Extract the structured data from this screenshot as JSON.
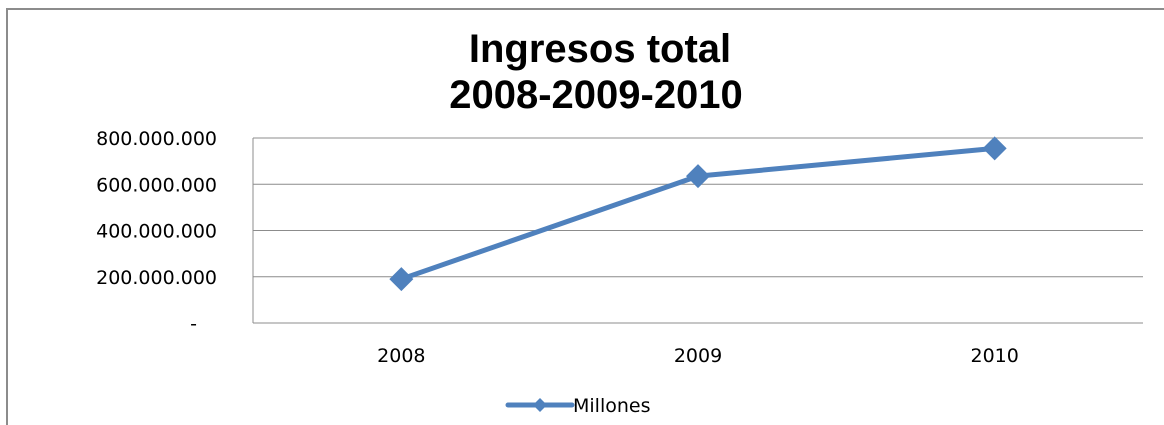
{
  "chart_data": {
    "type": "line",
    "title_lines": [
      "Ingresos total",
      "2008-2009-2010"
    ],
    "categories": [
      "2008",
      "2009",
      "2010"
    ],
    "series": [
      {
        "name": "Millones",
        "values": [
          190000000,
          635000000,
          755000000
        ]
      }
    ],
    "ylim": [
      0,
      800000000
    ],
    "yticks": [
      0,
      200000000,
      400000000,
      600000000,
      800000000
    ],
    "ytick_labels": [
      "-",
      "200.000.000",
      "400.000.000",
      "600.000.000",
      "800.000.000"
    ],
    "grid": true,
    "legend_position": "bottom",
    "series_color": "#4f81bd",
    "marker": "diamond"
  }
}
